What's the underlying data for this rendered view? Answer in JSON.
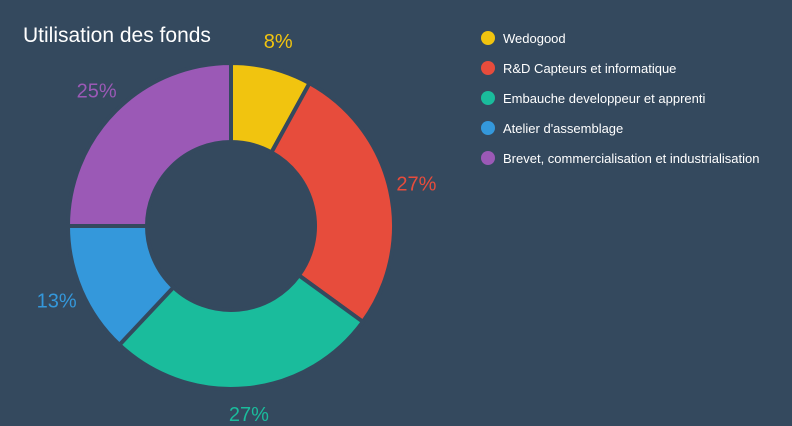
{
  "chart_data": {
    "type": "pie",
    "title": "Utilisation des fonds",
    "categories": [
      "Wedogood",
      "R&D Capteurs et informatique",
      "Embauche developpeur et apprenti",
      "Atelier d'assemblage",
      "Brevet, commercialisation et industrialisation"
    ],
    "values": [
      8,
      27,
      27,
      13,
      25
    ],
    "value_labels": [
      "8%",
      "27%",
      "27%",
      "13%",
      "25%"
    ],
    "colors": [
      "#f1c40f",
      "#e74c3c",
      "#1abc9c",
      "#3498db",
      "#9b59b6"
    ],
    "donut": true,
    "legend_position": "top-right"
  }
}
